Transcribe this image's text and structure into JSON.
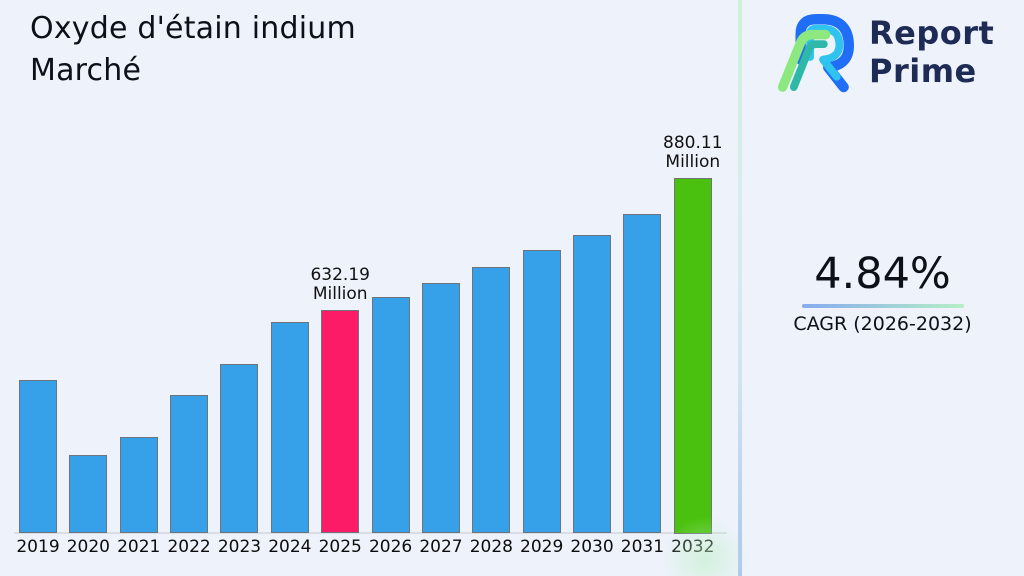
{
  "page": {
    "background": "#edf2fb"
  },
  "header": {
    "title": "Oxyde d'étain indium Marché"
  },
  "logo": {
    "line1": "Report",
    "line2": "Prime",
    "text_color": "#1e2c55",
    "mark_colors": {
      "blue": "#1f6ef5",
      "cyan": "#2fc3f0",
      "green": "#8ce87f",
      "teal": "#2eb8a8"
    }
  },
  "cagr": {
    "value": "4.84%",
    "label": "CAGR (2026-2032)",
    "underline_from": "#86abee",
    "underline_to": "#b6efc6"
  },
  "chart_data": {
    "type": "bar",
    "title": "Oxyde d'étain indium Marché",
    "unit": "Million",
    "categories": [
      "2019",
      "2020",
      "2021",
      "2022",
      "2023",
      "2024",
      "2025",
      "2026",
      "2027",
      "2028",
      "2029",
      "2030",
      "2031",
      "2032"
    ],
    "values": [
      501,
      361,
      395,
      473,
      531,
      610,
      632.19,
      656,
      683,
      712,
      744,
      772,
      811,
      880.11
    ],
    "point_colors": [
      "blue",
      "blue",
      "blue",
      "blue",
      "blue",
      "blue",
      "pink",
      "blue",
      "blue",
      "blue",
      "blue",
      "blue",
      "blue",
      "green"
    ],
    "palette": {
      "blue": "#36a0e8",
      "pink": "#fb1b67",
      "green": "#4ac10e"
    },
    "bar_edge_color": "#6f747b",
    "annotations": [
      {
        "category": "2025",
        "lines": [
          "632.19",
          "Million"
        ]
      },
      {
        "category": "2032",
        "lines": [
          "880.11",
          "Million"
        ]
      }
    ],
    "ylim": [
      214,
      880.11
    ],
    "xlabel": "",
    "ylabel": "",
    "grid": false,
    "legend": false,
    "baseline_color": "#d9dde6"
  }
}
